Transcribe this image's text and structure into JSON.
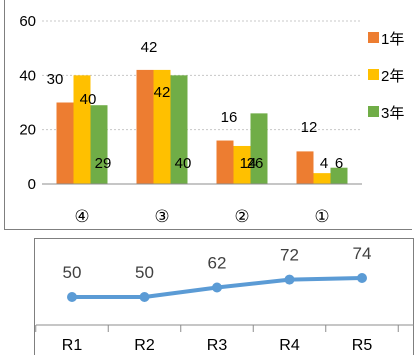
{
  "chart_data": [
    {
      "type": "bar",
      "categories": [
        "④",
        "③",
        "②",
        "①"
      ],
      "series": [
        {
          "name": "1年",
          "values": [
            30,
            42,
            16,
            12
          ],
          "color": "#ed7d31"
        },
        {
          "name": "2年",
          "values": [
            40,
            42,
            14,
            4
          ],
          "color": "#ffc000"
        },
        {
          "name": "3年",
          "values": [
            29,
            40,
            26,
            6
          ],
          "color": "#70ad47"
        }
      ],
      "ylim": [
        0,
        60
      ],
      "yticks": [
        0,
        20,
        40,
        60
      ],
      "grid": true,
      "legend": "right"
    },
    {
      "type": "line",
      "categories": [
        "R1",
        "R2",
        "R3",
        "R4",
        "R5"
      ],
      "values": [
        50,
        50,
        62,
        72,
        74
      ],
      "color": "#5b9bd5",
      "legend": "none"
    }
  ]
}
